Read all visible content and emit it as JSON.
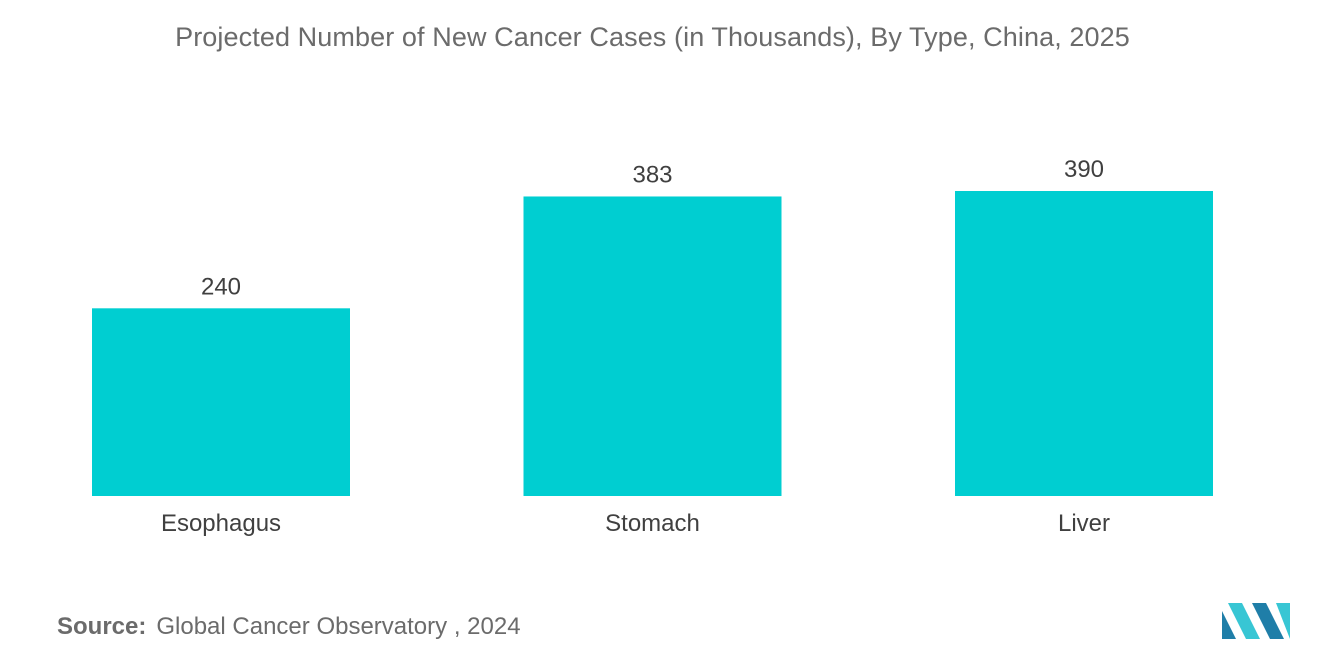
{
  "colors": {
    "bar": "#00ced1",
    "logo_dark": "#1f7ea8",
    "logo_light": "#38c6d4"
  },
  "source": {
    "label": "Source:",
    "text": "Global Cancer Observatory , 2024"
  },
  "logo": {
    "icon": "mordor-intelligence-logo-icon"
  },
  "chart_data": {
    "type": "bar",
    "title": "Projected Number of New Cancer Cases (in Thousands), By Type, China, 2025",
    "categories": [
      "Esophagus",
      "Stomach",
      "Liver"
    ],
    "values": [
      240,
      383,
      390
    ],
    "data_labels": [
      "240",
      "383",
      "390"
    ],
    "xlabel": "",
    "ylabel": "",
    "ylim": [
      0,
      390
    ],
    "grid": false,
    "legend": "none"
  }
}
